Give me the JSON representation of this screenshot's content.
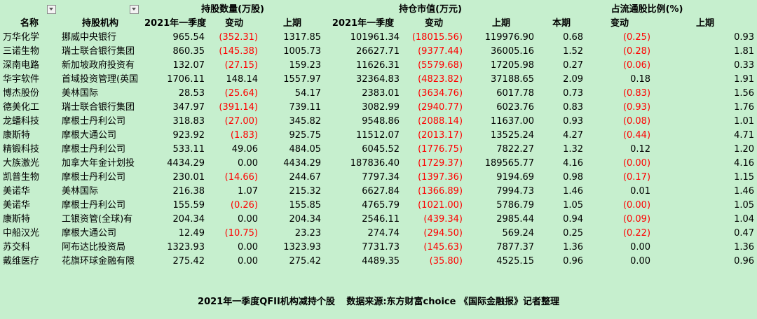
{
  "header": {
    "group_hold": "持股数量(万股)",
    "group_value": "持仓市值(万元)",
    "group_ratio": "占流通股比例(%)"
  },
  "columns": {
    "name": "名称",
    "institution": "持股机构",
    "hold_q1": "2021年一季度",
    "hold_chg": "变动",
    "hold_prev": "上期",
    "val_q1": "2021年一季度",
    "val_chg": "变动",
    "val_prev": "上期",
    "ratio_cur": "本期",
    "ratio_chg": "变动",
    "ratio_prev": "上期"
  },
  "rows": [
    {
      "name": "万华化学",
      "inst": "挪威中央银行",
      "h": "965.54",
      "hc": "(352.31)",
      "hp": "1317.85",
      "v": "101961.34",
      "vc": "(18015.56)",
      "vp": "119976.90",
      "r": "0.68",
      "rc": "(0.25)",
      "rp": "0.93"
    },
    {
      "name": "三诺生物",
      "inst": "瑞士联合银行集团",
      "h": "860.35",
      "hc": "(145.38)",
      "hp": "1005.73",
      "v": "26627.71",
      "vc": "(9377.44)",
      "vp": "36005.16",
      "r": "1.52",
      "rc": "(0.28)",
      "rp": "1.81"
    },
    {
      "name": "深南电路",
      "inst": "新加坡政府投资有",
      "h": "132.07",
      "hc": "(27.15)",
      "hp": "159.23",
      "v": "11626.31",
      "vc": "(5579.68)",
      "vp": "17205.98",
      "r": "0.27",
      "rc": "(0.06)",
      "rp": "0.33"
    },
    {
      "name": "华宇软件",
      "inst": "首域投资管理(英国",
      "h": "1706.11",
      "hc": "148.14",
      "hp": "1557.97",
      "v": "32364.83",
      "vc": "(4823.82)",
      "vp": "37188.65",
      "r": "2.09",
      "rc": "0.18",
      "rp": "1.91"
    },
    {
      "name": "博杰股份",
      "inst": "美林国际",
      "h": "28.53",
      "hc": "(25.64)",
      "hp": "54.17",
      "v": "2383.01",
      "vc": "(3634.76)",
      "vp": "6017.78",
      "r": "0.73",
      "rc": "(0.83)",
      "rp": "1.56"
    },
    {
      "name": "德美化工",
      "inst": "瑞士联合银行集团",
      "h": "347.97",
      "hc": "(391.14)",
      "hp": "739.11",
      "v": "3082.99",
      "vc": "(2940.77)",
      "vp": "6023.76",
      "r": "0.83",
      "rc": "(0.93)",
      "rp": "1.76"
    },
    {
      "name": "龙蟠科技",
      "inst": "摩根士丹利公司",
      "h": "318.83",
      "hc": "(27.00)",
      "hp": "345.82",
      "v": "9548.86",
      "vc": "(2088.14)",
      "vp": "11637.00",
      "r": "0.93",
      "rc": "(0.08)",
      "rp": "1.01"
    },
    {
      "name": "康斯特",
      "inst": "摩根大通公司",
      "h": "923.92",
      "hc": "(1.83)",
      "hp": "925.75",
      "v": "11512.07",
      "vc": "(2013.17)",
      "vp": "13525.24",
      "r": "4.27",
      "rc": "(0.44)",
      "rp": "4.71"
    },
    {
      "name": "精锻科技",
      "inst": "摩根士丹利公司",
      "h": "533.11",
      "hc": "49.06",
      "hp": "484.05",
      "v": "6045.52",
      "vc": "(1776.75)",
      "vp": "7822.27",
      "r": "1.32",
      "rc": "0.12",
      "rp": "1.20"
    },
    {
      "name": "大族激光",
      "inst": "加拿大年金计划投",
      "h": "4434.29",
      "hc": "0.00",
      "hp": "4434.29",
      "v": "187836.40",
      "vc": "(1729.37)",
      "vp": "189565.77",
      "r": "4.16",
      "rc": "(0.00)",
      "rp": "4.16"
    },
    {
      "name": "凯普生物",
      "inst": "摩根士丹利公司",
      "h": "230.01",
      "hc": "(14.66)",
      "hp": "244.67",
      "v": "7797.34",
      "vc": "(1397.36)",
      "vp": "9194.69",
      "r": "0.98",
      "rc": "(0.17)",
      "rp": "1.15"
    },
    {
      "name": "美诺华",
      "inst": "美林国际",
      "h": "216.38",
      "hc": "1.07",
      "hp": "215.32",
      "v": "6627.84",
      "vc": "(1366.89)",
      "vp": "7994.73",
      "r": "1.46",
      "rc": "0.01",
      "rp": "1.46"
    },
    {
      "name": "美诺华",
      "inst": "摩根士丹利公司",
      "h": "155.59",
      "hc": "(0.26)",
      "hp": "155.85",
      "v": "4765.79",
      "vc": "(1021.00)",
      "vp": "5786.79",
      "r": "1.05",
      "rc": "(0.00)",
      "rp": "1.05"
    },
    {
      "name": "康斯特",
      "inst": "工银资管(全球)有",
      "h": "204.34",
      "hc": "0.00",
      "hp": "204.34",
      "v": "2546.11",
      "vc": "(439.34)",
      "vp": "2985.44",
      "r": "0.94",
      "rc": "(0.09)",
      "rp": "1.04"
    },
    {
      "name": "中船汉光",
      "inst": "摩根大通公司",
      "h": "12.49",
      "hc": "(10.75)",
      "hp": "23.23",
      "v": "274.74",
      "vc": "(294.50)",
      "vp": "569.24",
      "r": "0.25",
      "rc": "(0.22)",
      "rp": "0.47"
    },
    {
      "name": "苏交科",
      "inst": "阿布达比投资局",
      "h": "1323.93",
      "hc": "0.00",
      "hp": "1323.93",
      "v": "7731.73",
      "vc": "(145.63)",
      "vp": "7877.37",
      "r": "1.36",
      "rc": "0.00",
      "rp": "1.36"
    },
    {
      "name": "戴维医疗",
      "inst": "花旗环球金融有限",
      "h": "275.42",
      "hc": "0.00",
      "hp": "275.42",
      "v": "4489.35",
      "vc": "(35.80)",
      "vp": "4525.15",
      "r": "0.96",
      "rc": "0.00",
      "rp": "0.96"
    }
  ],
  "footer": {
    "caption": "2021年一季度QFII机构减持个股",
    "source": "数据来源:东方财富choice 《国际金融报》记者整理"
  },
  "colors": {
    "background": "#c6efce",
    "negative": "#ff0000"
  }
}
